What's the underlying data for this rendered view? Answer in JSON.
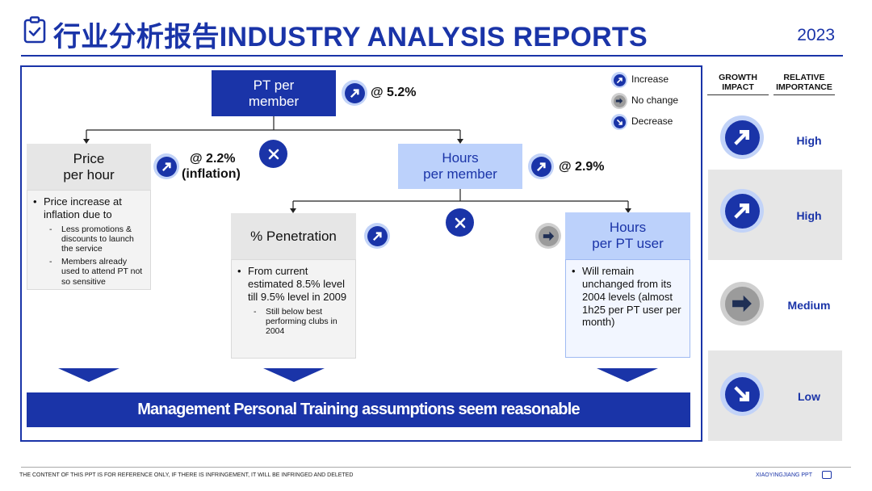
{
  "header": {
    "title": "行业分析报告INDUSTRY ANALYSIS REPORTS",
    "year": "2023",
    "icon": "clipboard-check-icon"
  },
  "legend": {
    "increase": "Increase",
    "no_change": "No change",
    "decrease": "Decrease"
  },
  "tree": {
    "root": {
      "label_line1": "PT per",
      "label_line2": "member",
      "growth": "@ 5.2%"
    },
    "price": {
      "label_line1": "Price",
      "label_line2": "per hour",
      "growth_line1": "@ 2.2%",
      "growth_line2": "(inflation)",
      "bullet": "Price increase at inflation due to",
      "sub": [
        "Less promotions & discounts to launch the service",
        "Members already used to attend PT not so sensitive"
      ]
    },
    "hours_member": {
      "label_line1": "Hours",
      "label_line2": "per member",
      "growth": "@ 2.9%"
    },
    "penetration": {
      "label": "% Penetration",
      "bullet": "From current estimated 8.5% level till 9.5% level in 2009",
      "sub": [
        "Still below best performing clubs in 2004"
      ]
    },
    "hours_user": {
      "label_line1": "Hours",
      "label_line2": "per PT user",
      "bullet": "Will remain unchanged from its 2004 levels (almost 1h25 per PT user per month)"
    },
    "operator": "×"
  },
  "banner": "Management Personal Training assumptions seem reasonable",
  "right_panel": {
    "col1": [
      "GROWTH",
      "IMPACT"
    ],
    "col2": [
      "RELATIVE",
      "IMPORTANCE"
    ],
    "rows": [
      {
        "icon": "arrow-up-right-icon",
        "label": "High"
      },
      {
        "icon": "arrow-up-right-icon",
        "label": "High"
      },
      {
        "icon": "arrow-right-icon",
        "label": "Medium"
      },
      {
        "icon": "arrow-down-right-icon",
        "label": "Low"
      }
    ]
  },
  "footer": {
    "notice": "THE CONTENT OF THIS PPT IS FOR REFERENCE ONLY, IF THERE IS INFRINGEMENT, IT WILL BE INFRINGED AND DELETED",
    "brand": "XIAOYINGJIANG PPT"
  },
  "colors": {
    "primary": "#1a34a8",
    "light_blue": "#bcd1fb",
    "grey": "#e6e6e6"
  }
}
